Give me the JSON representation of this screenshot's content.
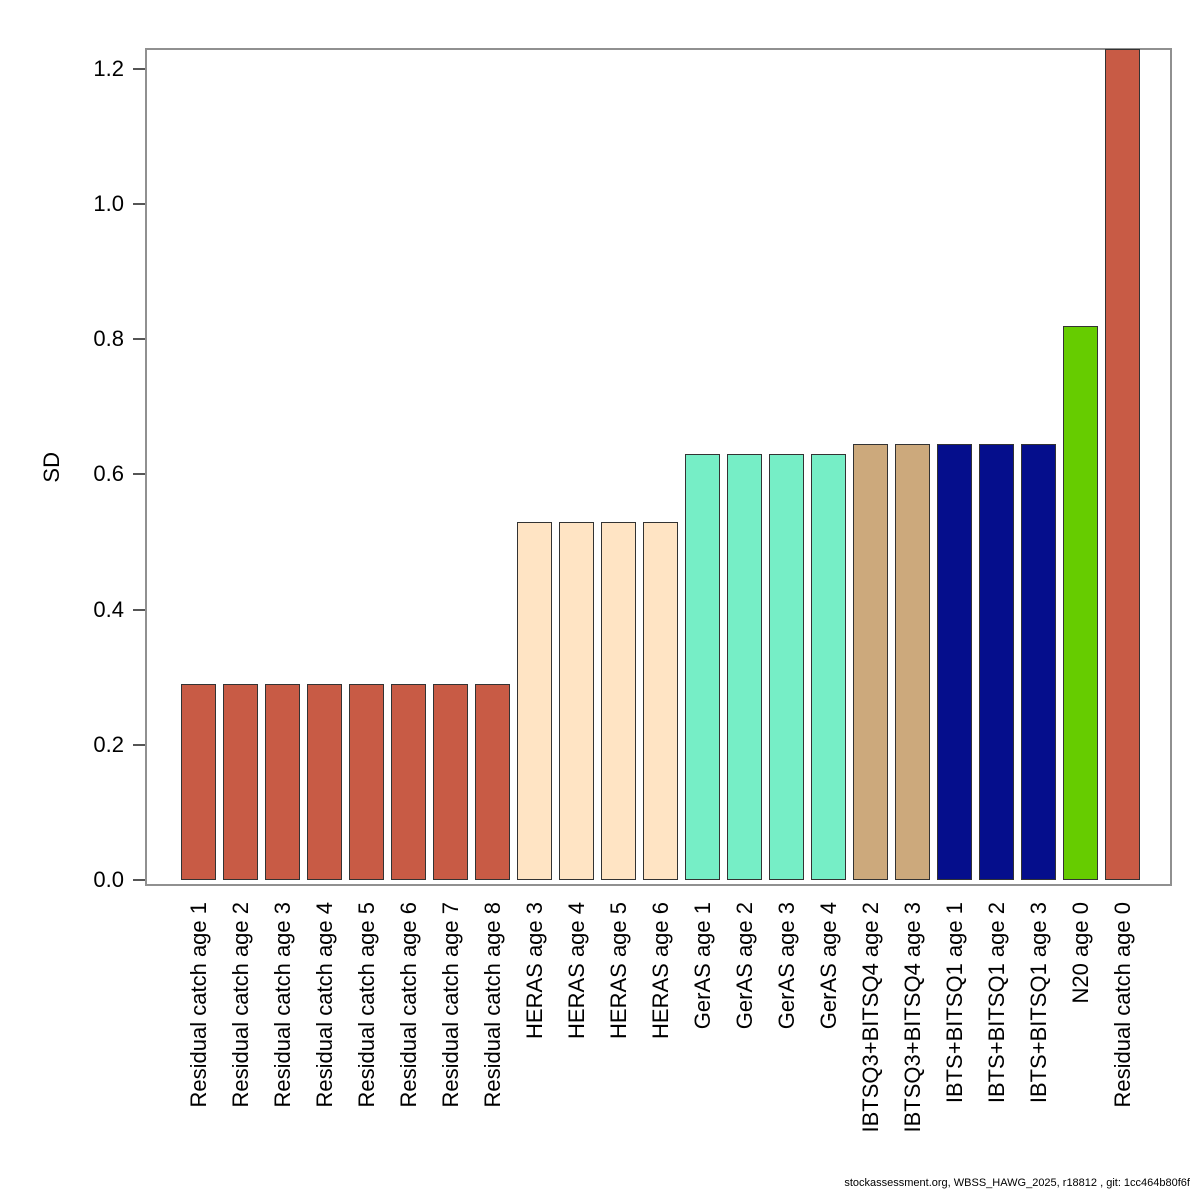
{
  "figure": {
    "footer": "stockassessment.org, WBSS_HAWG_2025, r18812 , git: 1cc464b80f6f"
  },
  "chart_data": {
    "type": "bar",
    "title": "",
    "xlabel": "",
    "ylabel": "SD",
    "ylim": [
      0,
      1.2
    ],
    "ytick_labels": [
      "0.0",
      "0.2",
      "0.4",
      "0.6",
      "0.8",
      "1.0",
      "1.2"
    ],
    "grid": false,
    "legend_position": "none",
    "bar_border_color": "#333333",
    "frame_color": "#909090",
    "categories": [
      "Residual catch age 1",
      "Residual catch age 2",
      "Residual catch age 3",
      "Residual catch age 4",
      "Residual catch age 5",
      "Residual catch age 6",
      "Residual catch age 7",
      "Residual catch age 8",
      "HERAS age 3",
      "HERAS age 4",
      "HERAS age 5",
      "HERAS age 6",
      "GerAS age 1",
      "GerAS age 2",
      "GerAS age 3",
      "GerAS age 4",
      "IBTSQ3+BITSQ4 age 2",
      "IBTSQ3+BITSQ4 age 3",
      "IBTS+BITSQ1 age 1",
      "IBTS+BITSQ1 age 2",
      "IBTS+BITSQ1 age 3",
      "N20 age 0",
      "Residual catch age 0"
    ],
    "values": [
      0.29,
      0.29,
      0.29,
      0.29,
      0.29,
      0.29,
      0.29,
      0.29,
      0.53,
      0.53,
      0.53,
      0.53,
      0.63,
      0.63,
      0.63,
      0.63,
      0.645,
      0.645,
      0.645,
      0.645,
      0.645,
      0.82,
      1.23
    ],
    "bar_colors": [
      "#C85B45",
      "#C85B45",
      "#C85B45",
      "#C85B45",
      "#C85B45",
      "#C85B45",
      "#C85B45",
      "#C85B45",
      "#FFE4C4",
      "#FFE4C4",
      "#FFE4C4",
      "#FFE4C4",
      "#76EEC6",
      "#76EEC6",
      "#76EEC6",
      "#76EEC6",
      "#CCA97C",
      "#CCA97C",
      "#050E8C",
      "#050E8C",
      "#050E8C",
      "#66CC00",
      "#C85B45"
    ],
    "fleet_colors": {
      "Residual catch": "#C85B45",
      "HERAS": "#FFE4C4",
      "GerAS": "#76EEC6",
      "IBTSQ3+BITSQ4": "#CCA97C",
      "IBTS+BITSQ1": "#050E8C",
      "N20": "#66CC00"
    }
  }
}
